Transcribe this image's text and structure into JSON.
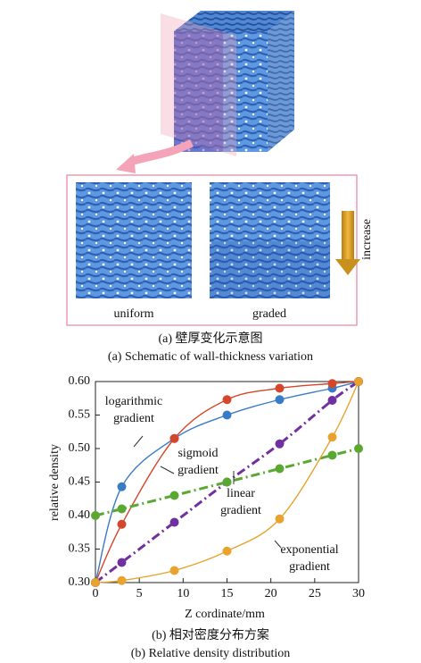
{
  "figure_a": {
    "left_label": "uniform",
    "right_label": "graded",
    "arrow_label": "increase",
    "caption_cn": "(a) 壁厚变化示意图",
    "caption_en": "(a) Schematic of wall-thickness variation"
  },
  "chart_data": {
    "type": "line",
    "xlabel": "Z cordinate/mm",
    "ylabel": "relative density",
    "caption_cn": "(b) 相对密度分布方案",
    "caption_en": "(b) Relative density distribution",
    "x": [
      0,
      3,
      9,
      15,
      21,
      27,
      30
    ],
    "xlim": [
      0,
      30
    ],
    "xticks": [
      0,
      5,
      10,
      15,
      20,
      25,
      30
    ],
    "ylim": [
      0.3,
      0.6
    ],
    "yticks": [
      {
        "value": 0.3,
        "label": "0.30"
      },
      0.35,
      {
        "value": 0.4,
        "label": "0.40"
      },
      0.45,
      {
        "value": 0.5,
        "label": "0.50"
      },
      0.55,
      {
        "value": 0.6,
        "label": "0.60"
      }
    ],
    "series": [
      {
        "color": "#3a7bc8",
        "style": "solid",
        "values": [
          0.3,
          0.443,
          0.515,
          0.55,
          0.573,
          0.59,
          0.6
        ]
      },
      {
        "color": "#d4472a",
        "style": "solid",
        "values": [
          0.3,
          0.387,
          0.515,
          0.573,
          0.59,
          0.597,
          0.6
        ]
      },
      {
        "color": "#7030a0",
        "style": "dashdot",
        "values": [
          0.3,
          0.33,
          0.39,
          0.45,
          0.507,
          0.572,
          0.6
        ]
      },
      {
        "color": "#5aa832",
        "style": "dashdot",
        "values": [
          0.4,
          0.41,
          0.43,
          0.45,
          0.47,
          0.49,
          0.5
        ]
      },
      {
        "color": "#e8a32e",
        "style": "solid",
        "values": [
          0.3,
          0.303,
          0.318,
          0.347,
          0.395,
          0.517,
          0.6
        ]
      }
    ],
    "annotations": [
      {
        "lines": [
          "logarithmic",
          "gradient"
        ]
      },
      {
        "lines": [
          "sigmoid",
          "gradient"
        ]
      },
      {
        "lines": [
          "linear",
          "gradient"
        ]
      },
      {
        "lines": [
          "exponential",
          "gradient"
        ]
      }
    ]
  }
}
